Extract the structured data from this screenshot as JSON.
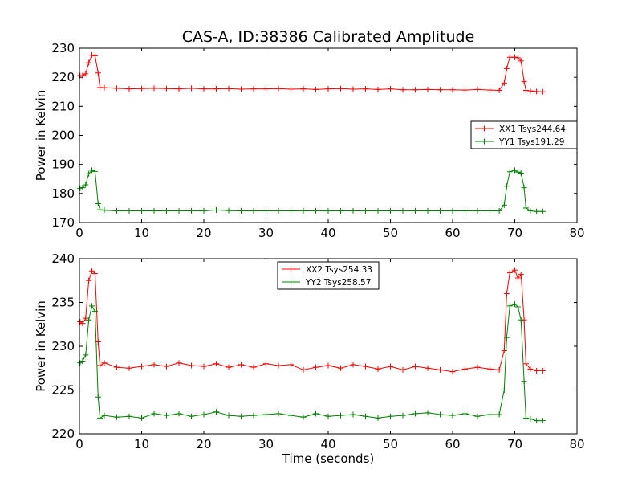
{
  "chart_data": [
    {
      "type": "line",
      "title": "CAS-A, ID:38386 Calibrated Amplitude",
      "xlabel": "",
      "ylabel": "Power in Kelvin",
      "xlim": [
        0,
        80
      ],
      "ylim": [
        170,
        230
      ],
      "xticks": [
        "0",
        "10",
        "20",
        "30",
        "40",
        "50",
        "60",
        "70",
        "80"
      ],
      "yticks": [
        "170",
        "180",
        "190",
        "200",
        "210",
        "220",
        "230"
      ],
      "legend_position": "center-right",
      "series": [
        {
          "name": "XX1 Tsys244.64",
          "color": "#ff0000",
          "points": [
            [
              0.1,
              220.6
            ],
            [
              0.5,
              220.6
            ],
            [
              1.0,
              221.2
            ],
            [
              1.5,
              225.0
            ],
            [
              2.0,
              227.6
            ],
            [
              2.5,
              227.4
            ],
            [
              3.0,
              221.5
            ],
            [
              3.3,
              216.5
            ],
            [
              4,
              216.4
            ],
            [
              6,
              216.2
            ],
            [
              8,
              216.0
            ],
            [
              10,
              216.1
            ],
            [
              12,
              216.2
            ],
            [
              14,
              216.1
            ],
            [
              16,
              216.0
            ],
            [
              18,
              216.2
            ],
            [
              20,
              216.0
            ],
            [
              22,
              216.0
            ],
            [
              24,
              216.1
            ],
            [
              26,
              215.9
            ],
            [
              28,
              216.0
            ],
            [
              30,
              216.0
            ],
            [
              32,
              216.1
            ],
            [
              34,
              215.9
            ],
            [
              36,
              216.0
            ],
            [
              38,
              215.8
            ],
            [
              40,
              216.0
            ],
            [
              42,
              216.1
            ],
            [
              44,
              215.9
            ],
            [
              46,
              216.0
            ],
            [
              48,
              215.8
            ],
            [
              50,
              216.0
            ],
            [
              52,
              215.7
            ],
            [
              54,
              215.7
            ],
            [
              56,
              215.8
            ],
            [
              58,
              215.7
            ],
            [
              60,
              215.7
            ],
            [
              62,
              215.6
            ],
            [
              64,
              215.8
            ],
            [
              66,
              215.6
            ],
            [
              67.5,
              215.5
            ],
            [
              68.3,
              218.0
            ],
            [
              68.7,
              223.0
            ],
            [
              69.2,
              226.9
            ],
            [
              70,
              226.9
            ],
            [
              70.5,
              226.7
            ],
            [
              71,
              225.6
            ],
            [
              71.5,
              218.5
            ],
            [
              71.8,
              215.5
            ],
            [
              72.5,
              215.3
            ],
            [
              73.5,
              215.1
            ],
            [
              74.5,
              215.0
            ]
          ]
        },
        {
          "name": "YY1 Tsys191.29",
          "color": "#008000",
          "points": [
            [
              0.1,
              181.8
            ],
            [
              0.5,
              182.0
            ],
            [
              1.0,
              183.0
            ],
            [
              1.5,
              186.8
            ],
            [
              2.0,
              188.0
            ],
            [
              2.5,
              187.6
            ],
            [
              3.0,
              176.5
            ],
            [
              3.3,
              174.4
            ],
            [
              4,
              174.2
            ],
            [
              6,
              174.0
            ],
            [
              8,
              174.0
            ],
            [
              10,
              174.0
            ],
            [
              12,
              174.0
            ],
            [
              14,
              174.0
            ],
            [
              16,
              174.0
            ],
            [
              18,
              174.0
            ],
            [
              20,
              174.0
            ],
            [
              22,
              174.3
            ],
            [
              24,
              174.1
            ],
            [
              26,
              174.0
            ],
            [
              28,
              174.0
            ],
            [
              30,
              174.0
            ],
            [
              32,
              174.0
            ],
            [
              34,
              174.0
            ],
            [
              36,
              174.0
            ],
            [
              38,
              174.0
            ],
            [
              40,
              174.0
            ],
            [
              42,
              174.0
            ],
            [
              44,
              174.0
            ],
            [
              46,
              174.0
            ],
            [
              48,
              174.0
            ],
            [
              50,
              174.0
            ],
            [
              52,
              174.0
            ],
            [
              54,
              174.0
            ],
            [
              56,
              174.0
            ],
            [
              58,
              174.0
            ],
            [
              60,
              174.0
            ],
            [
              62,
              174.0
            ],
            [
              64,
              174.0
            ],
            [
              66,
              174.0
            ],
            [
              67.5,
              174.0
            ],
            [
              68.3,
              176.0
            ],
            [
              68.7,
              182.5
            ],
            [
              69.2,
              187.5
            ],
            [
              70,
              188.0
            ],
            [
              70.5,
              187.4
            ],
            [
              71,
              187.0
            ],
            [
              71.5,
              182.0
            ],
            [
              71.8,
              175.0
            ],
            [
              72.5,
              174.0
            ],
            [
              73.5,
              173.8
            ],
            [
              74.5,
              173.8
            ]
          ]
        }
      ]
    },
    {
      "type": "line",
      "title": "",
      "xlabel": "Time (seconds)",
      "ylabel": "Power in Kelvin",
      "xlim": [
        0,
        80
      ],
      "ylim": [
        220,
        240
      ],
      "xticks": [
        "0",
        "10",
        "20",
        "30",
        "40",
        "50",
        "60",
        "70",
        "80"
      ],
      "yticks": [
        "220",
        "225",
        "230",
        "235",
        "240"
      ],
      "legend_position": "top-center",
      "series": [
        {
          "name": "XX2 Tsys254.33",
          "color": "#ff0000",
          "points": [
            [
              0.1,
              232.8
            ],
            [
              0.5,
              232.6
            ],
            [
              1.0,
              233.2
            ],
            [
              1.5,
              237.5
            ],
            [
              2.0,
              238.6
            ],
            [
              2.5,
              238.3
            ],
            [
              3.0,
              230.5
            ],
            [
              3.3,
              227.8
            ],
            [
              4,
              228.1
            ],
            [
              6,
              227.6
            ],
            [
              8,
              227.5
            ],
            [
              10,
              227.7
            ],
            [
              12,
              227.9
            ],
            [
              14,
              227.7
            ],
            [
              16,
              228.1
            ],
            [
              18,
              227.8
            ],
            [
              20,
              227.7
            ],
            [
              22,
              228.0
            ],
            [
              24,
              227.6
            ],
            [
              26,
              227.9
            ],
            [
              28,
              227.6
            ],
            [
              30,
              228.0
            ],
            [
              32,
              227.8
            ],
            [
              34,
              227.9
            ],
            [
              36,
              227.3
            ],
            [
              38,
              227.6
            ],
            [
              40,
              227.8
            ],
            [
              42,
              227.5
            ],
            [
              44,
              227.9
            ],
            [
              46,
              227.7
            ],
            [
              48,
              227.4
            ],
            [
              50,
              227.7
            ],
            [
              52,
              227.3
            ],
            [
              54,
              227.7
            ],
            [
              56,
              227.5
            ],
            [
              58,
              227.3
            ],
            [
              60,
              227.1
            ],
            [
              62,
              227.4
            ],
            [
              64,
              227.6
            ],
            [
              66,
              227.4
            ],
            [
              67.5,
              227.3
            ],
            [
              68.3,
              229.5
            ],
            [
              68.7,
              236.0
            ],
            [
              69.2,
              238.4
            ],
            [
              70,
              238.7
            ],
            [
              70.5,
              237.8
            ],
            [
              71,
              238.2
            ],
            [
              71.5,
              233.0
            ],
            [
              71.8,
              228.0
            ],
            [
              72.5,
              227.4
            ],
            [
              73.5,
              227.2
            ],
            [
              74.5,
              227.2
            ]
          ]
        },
        {
          "name": "YY2 Tsys258.57",
          "color": "#008000",
          "points": [
            [
              0.1,
              228.1
            ],
            [
              0.5,
              228.3
            ],
            [
              1.0,
              229.0
            ],
            [
              1.5,
              233.0
            ],
            [
              2.0,
              234.6
            ],
            [
              2.5,
              234.0
            ],
            [
              3.0,
              224.2
            ],
            [
              3.3,
              221.8
            ],
            [
              4,
              222.1
            ],
            [
              6,
              221.9
            ],
            [
              8,
              222.0
            ],
            [
              10,
              221.8
            ],
            [
              12,
              222.3
            ],
            [
              14,
              222.1
            ],
            [
              16,
              222.3
            ],
            [
              18,
              222.0
            ],
            [
              20,
              222.2
            ],
            [
              22,
              222.5
            ],
            [
              24,
              222.1
            ],
            [
              26,
              222.0
            ],
            [
              28,
              222.1
            ],
            [
              30,
              222.2
            ],
            [
              32,
              222.3
            ],
            [
              34,
              222.1
            ],
            [
              36,
              221.9
            ],
            [
              38,
              222.3
            ],
            [
              40,
              222.0
            ],
            [
              42,
              222.1
            ],
            [
              44,
              222.2
            ],
            [
              46,
              222.0
            ],
            [
              48,
              221.8
            ],
            [
              50,
              222.0
            ],
            [
              52,
              222.1
            ],
            [
              54,
              222.3
            ],
            [
              56,
              222.4
            ],
            [
              58,
              222.2
            ],
            [
              60,
              222.1
            ],
            [
              62,
              222.3
            ],
            [
              64,
              222.0
            ],
            [
              66,
              222.2
            ],
            [
              67.5,
              222.2
            ],
            [
              68.3,
              225.0
            ],
            [
              68.7,
              231.0
            ],
            [
              69.2,
              234.6
            ],
            [
              70,
              234.8
            ],
            [
              70.5,
              234.5
            ],
            [
              71,
              233.0
            ],
            [
              71.5,
              226.0
            ],
            [
              71.8,
              221.8
            ],
            [
              72.5,
              221.7
            ],
            [
              73.5,
              221.5
            ],
            [
              74.5,
              221.5
            ]
          ]
        }
      ]
    }
  ]
}
